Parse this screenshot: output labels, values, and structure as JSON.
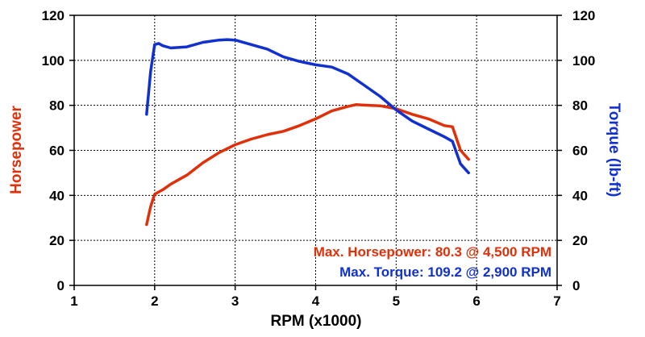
{
  "chart_data": {
    "type": "line",
    "title": "",
    "xlabel": "RPM (x1000)",
    "ylabel_left": "Horsepower",
    "ylabel_right": "Torque (lb-ft)",
    "xlim": [
      1,
      7
    ],
    "ylim_left": [
      0,
      120
    ],
    "ylim_right": [
      0,
      120
    ],
    "x_ticks": [
      "1",
      "2",
      "3",
      "4",
      "5",
      "6",
      "7"
    ],
    "y_ticks_left": [
      "0",
      "20",
      "40",
      "60",
      "80",
      "100",
      "120"
    ],
    "y_ticks_right": [
      "0",
      "20",
      "40",
      "60",
      "80",
      "100",
      "120"
    ],
    "grid": "dotted",
    "colors": {
      "horsepower": "#e0300a",
      "torque": "#1030d0"
    },
    "series": [
      {
        "axis": "left",
        "color": "#e0300a",
        "x": [
          1.9,
          1.95,
          2.0,
          2.1,
          2.2,
          2.4,
          2.6,
          2.8,
          3.0,
          3.2,
          3.4,
          3.6,
          3.8,
          4.0,
          4.2,
          4.4,
          4.5,
          4.6,
          4.8,
          5.0,
          5.2,
          5.4,
          5.6,
          5.7,
          5.8,
          5.9
        ],
        "values": [
          27,
          35,
          40.5,
          42.5,
          45,
          49,
          54.5,
          59,
          62.5,
          65,
          67,
          68.5,
          71,
          74,
          77.5,
          79.5,
          80.3,
          80.1,
          79.8,
          78.5,
          76,
          74,
          71,
          70.5,
          60,
          56
        ]
      },
      {
        "axis": "right",
        "color": "#1030d0",
        "x": [
          1.9,
          1.95,
          2.0,
          2.05,
          2.1,
          2.2,
          2.4,
          2.6,
          2.8,
          2.9,
          3.0,
          3.2,
          3.4,
          3.6,
          3.8,
          4.0,
          4.2,
          4.4,
          4.6,
          4.8,
          5.0,
          5.2,
          5.4,
          5.6,
          5.7,
          5.8,
          5.9
        ],
        "values": [
          76,
          95,
          107,
          107.5,
          106.5,
          105.5,
          106,
          108,
          109,
          109.2,
          109,
          107,
          105,
          101.5,
          99.5,
          98,
          97,
          94,
          89,
          84,
          78,
          73,
          69.5,
          66,
          64,
          54,
          50
        ]
      }
    ],
    "annotations": [
      {
        "text": "Max. Horsepower: 80.3 @ 4,500 RPM",
        "color": "#e0300a"
      },
      {
        "text": "Max. Torque: 109.2 @ 2,900 RPM",
        "color": "#1030d0"
      }
    ]
  }
}
